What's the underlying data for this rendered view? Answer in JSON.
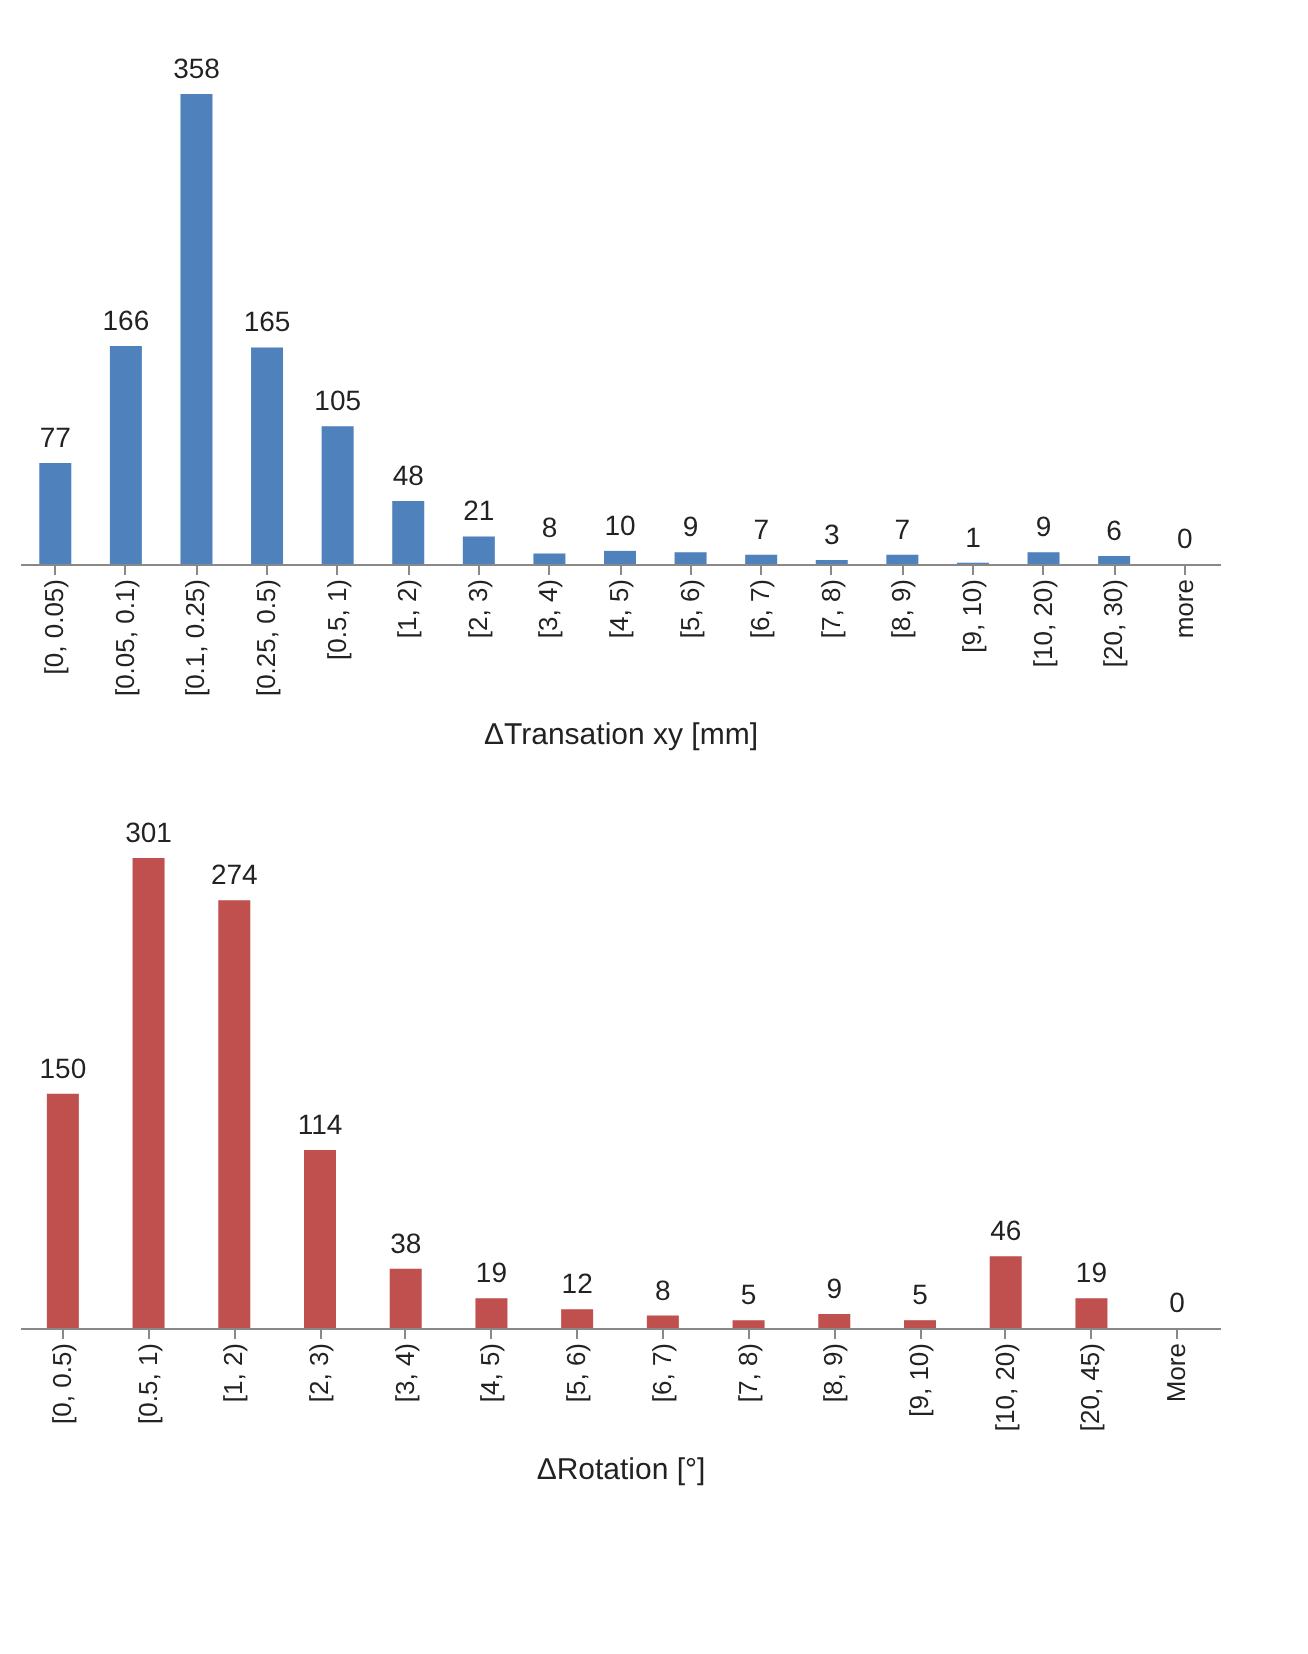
{
  "chart_data": [
    {
      "type": "bar",
      "xlabel": "ΔTransation xy [mm]",
      "categories": [
        "[0, 0.05)",
        "[0.05, 0.1)",
        "[0.1, 0.25)",
        "[0.25, 0.5)",
        "[0.5, 1)",
        "[1, 2)",
        "[2, 3)",
        "[3, 4)",
        "[4, 5)",
        "[5, 6)",
        "[6, 7)",
        "[7, 8)",
        "[8, 9)",
        "[9, 10)",
        "[10, 20)",
        "[20, 30)",
        "more"
      ],
      "series": [
        {
          "color": "#4f81bd",
          "values": [
            77,
            166,
            358,
            165,
            105,
            48,
            21,
            8,
            10,
            9,
            7,
            3,
            7,
            1,
            9,
            6,
            0
          ]
        }
      ],
      "data_labels": true,
      "tick_labels": "x",
      "grid": false
    },
    {
      "type": "bar",
      "xlabel": "ΔRotation [°]",
      "categories": [
        "[0, 0.5)",
        "[0.5, 1)",
        "[1, 2)",
        "[2, 3)",
        "[3, 4)",
        "[4, 5)",
        "[5, 6)",
        "[6, 7)",
        "[7, 8)",
        "[8, 9)",
        "[9, 10)",
        "[10, 20)",
        "[20, 45)",
        "More"
      ],
      "series": [
        {
          "color": "#c0504d",
          "values": [
            150,
            301,
            274,
            114,
            38,
            19,
            12,
            8,
            5,
            9,
            5,
            46,
            19,
            0
          ]
        }
      ],
      "data_labels": true,
      "tick_labels": "x",
      "grid": false
    }
  ]
}
